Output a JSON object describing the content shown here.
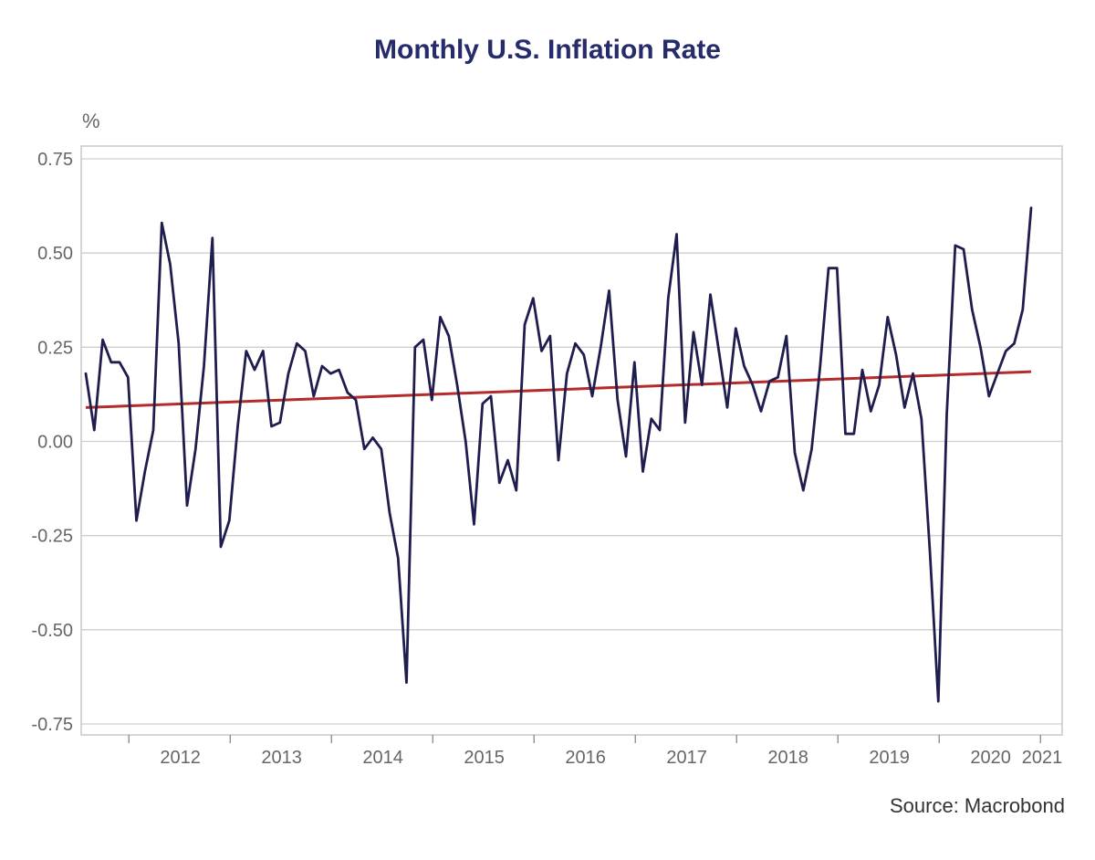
{
  "chart_data": {
    "type": "line",
    "title": "Monthly U.S. Inflation Rate",
    "y_unit": "%",
    "source": "Source: Macrobond",
    "x_start": "2011-08",
    "x_frequency": "monthly",
    "x_tick_labels": [
      "2012",
      "2013",
      "2014",
      "2015",
      "2016",
      "2017",
      "2018",
      "2019",
      "2020",
      "2021"
    ],
    "y_tick_labels": [
      "0.75",
      "0.50",
      "0.25",
      "0.00",
      "-0.25",
      "-0.50",
      "-0.75"
    ],
    "y_ticks": [
      0.75,
      0.5,
      0.25,
      0.0,
      -0.25,
      -0.5,
      -0.75
    ],
    "ylim": [
      -0.78,
      0.78
    ],
    "grid": true,
    "series": [
      {
        "values": [
          0.18,
          0.03,
          0.27,
          0.21,
          0.21,
          0.17,
          -0.21,
          -0.08,
          0.03,
          0.58,
          0.47,
          0.26,
          -0.17,
          -0.02,
          0.2,
          0.54,
          -0.28,
          -0.21,
          0.04,
          0.24,
          0.19,
          0.24,
          0.04,
          0.05,
          0.18,
          0.26,
          0.24,
          0.12,
          0.2,
          0.18,
          0.19,
          0.13,
          0.11,
          -0.02,
          0.01,
          -0.02,
          -0.19,
          -0.31,
          -0.64,
          0.25,
          0.27,
          0.11,
          0.33,
          0.28,
          0.15,
          0.0,
          -0.22,
          0.1,
          0.12,
          -0.11,
          -0.05,
          -0.13,
          0.31,
          0.38,
          0.24,
          0.28,
          -0.05,
          0.18,
          0.26,
          0.23,
          0.12,
          0.25,
          0.4,
          0.11,
          -0.04,
          0.21,
          -0.08,
          0.06,
          0.03,
          0.38,
          0.55,
          0.05,
          0.29,
          0.15,
          0.39,
          0.24,
          0.09,
          0.3,
          0.2,
          0.15,
          0.08,
          0.16,
          0.17,
          0.28,
          -0.03,
          -0.13,
          -0.02,
          0.2,
          0.46,
          0.46,
          0.02,
          0.02,
          0.19,
          0.08,
          0.15,
          0.33,
          0.23,
          0.09,
          0.18,
          0.06,
          -0.29,
          -0.69,
          0.07,
          0.52,
          0.51,
          0.35,
          0.25,
          0.12,
          0.18,
          0.24,
          0.26,
          0.35,
          0.62
        ],
        "color": "#1f1d4e"
      },
      {
        "trend_start": 0.09,
        "trend_end": 0.185,
        "color": "#b52a2a"
      }
    ]
  }
}
